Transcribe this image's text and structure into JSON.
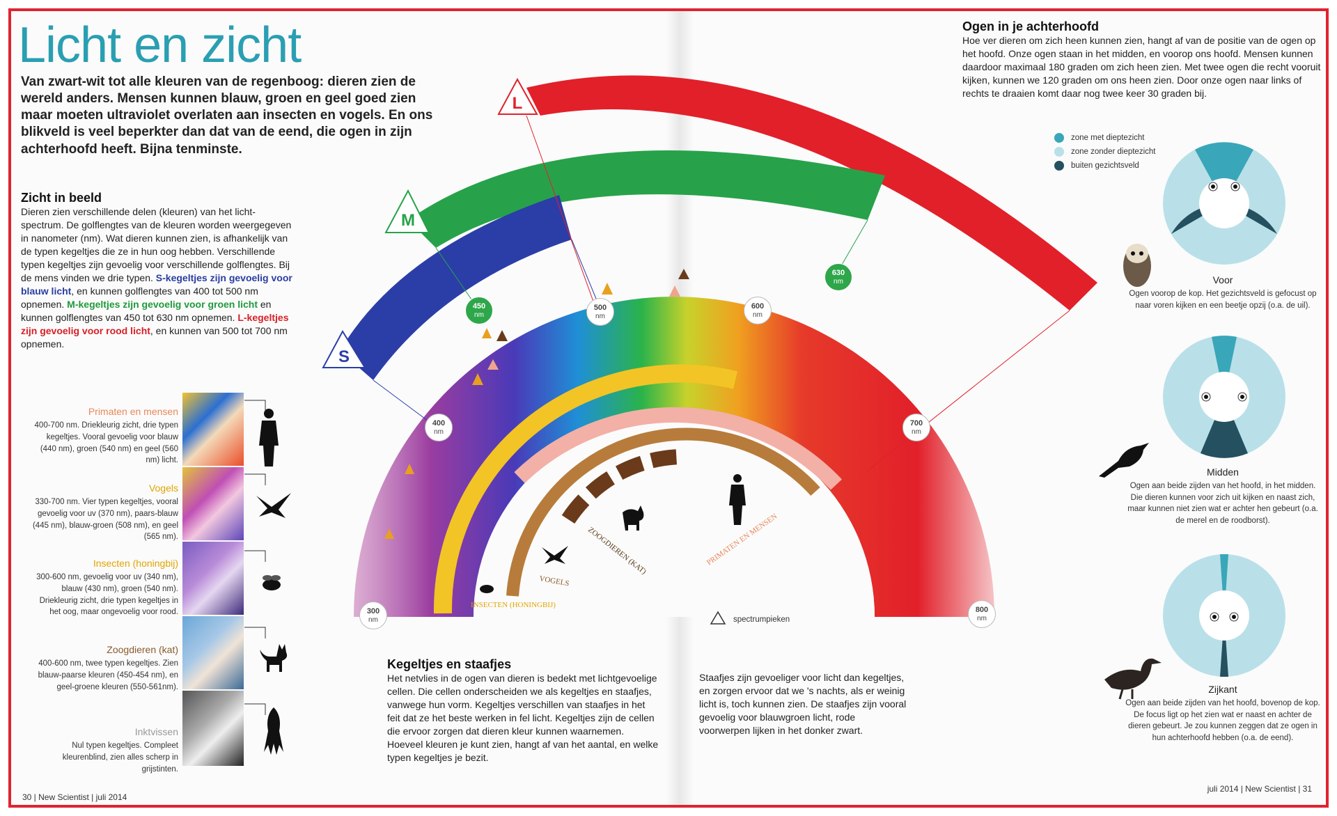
{
  "title": "Licht en zicht",
  "intro": "Van zwart-wit tot alle kleuren van de regenboog: dieren zien de wereld anders. Mensen kunnen blauw, groen en geel goed zien maar moeten ultraviolet overlaten aan insecten en vogels. En ons blikveld is veel beperkter dan dat van de eend, die ogen in zijn achterhoofd heeft. Bijna tenminste.",
  "zicht": {
    "heading": "Zicht in beeld",
    "p1": "Dieren zien verschillende delen (kleuren) van het licht-spectrum. De golflengtes van de kleuren worden weergegeven in nanometer (nm). Wat dieren kunnen zien, is afhankelijk van de typen kegeltjes die ze in hun oog hebben. Verschillende typen kegeltjes zijn gevoelig voor verschillende golflengtes. Bij de mens vinden we drie typen.",
    "s_txt": "S-kegeltjes zijn gevoelig voor blauw licht",
    "p2": ", en kunnen golflengtes van 400 tot 500 nm opnemen.",
    "m_txt": "M-kegeltjes zijn gevoelig voor groen licht",
    "p3": " en kunnen golflengtes van 450 tot 630 nm opnemen.",
    "l_txt": "L-kegeltjes zijn gevoelig voor rood licht",
    "p4": ", en kunnen van 500 tot 700 nm opnemen."
  },
  "animals": [
    {
      "name": "Primaten en mensen",
      "color": "#e8875a",
      "text": "400-700 nm. Driekleurig zicht, drie typen kegeltjes. Vooral gevoelig voor blauw (440 nm), groen (540 nm) en geel (560 nm) licht."
    },
    {
      "name": "Vogels",
      "color": "#e0a400",
      "text": "330-700 nm. Vier typen kegeltjes, vooral gevoelig voor uv (370 nm), paars-blauw (445 nm), blauw-groen (508 nm), en geel (565 nm)."
    },
    {
      "name": "Insecten (honingbij)",
      "color": "#e0a400",
      "text": "300-600 nm, gevoelig voor uv (340 nm), blauw (430 nm), groen (540 nm). Driekleurig zicht, drie typen kegeltjes in het oog, maar ongevoelig voor rood."
    },
    {
      "name": "Zoogdieren (kat)",
      "color": "#8a5a2a",
      "text": "400-600 nm, twee typen kegeltjes. Zien blauw-paarse kleuren (450-454 nm), en geel-groene kleuren (550-561nm)."
    },
    {
      "name": "Inktvissen",
      "color": "#999999",
      "text": "Nul typen kegeltjes. Compleet kleurenblind, zien alles scherp in grijstinten."
    }
  ],
  "cones": {
    "S": "S",
    "M": "M",
    "L": "L"
  },
  "wavelengths": [
    {
      "v": "300",
      "u": "nm"
    },
    {
      "v": "400",
      "u": "nm"
    },
    {
      "v": "450",
      "u": "nm"
    },
    {
      "v": "500",
      "u": "nm"
    },
    {
      "v": "600",
      "u": "nm"
    },
    {
      "v": "630",
      "u": "nm"
    },
    {
      "v": "700",
      "u": "nm"
    },
    {
      "v": "800",
      "u": "nm"
    }
  ],
  "arc_labels": {
    "insecten": "INSECTEN (HONINGBIJ)",
    "vogels": "VOGELS",
    "zoogdieren": "ZOOGDIEREN (KAT)",
    "primaten": "PRIMATEN EN MENSEN"
  },
  "legend_peaks": "spectrumpieken",
  "kegeltjes": {
    "heading": "Kegeltjes en staafjes",
    "text": "Het netvlies in de ogen van dieren is bedekt met lichtgevoelige cellen. Die cellen onderscheiden we als kegeltjes en staafjes, vanwege hun vorm. Kegeltjes verschillen van staafjes in het feit dat ze het beste werken in fel licht. Kegeltjes zijn de cellen die ervoor zorgen dat dieren kleur kunnen waarnemen. Hoeveel kleuren je kunt zien, hangt af van het aantal, en welke typen kegeltjes je bezit."
  },
  "staafjes": {
    "text": "Staafjes zijn gevoeliger voor licht dan kegeltjes, en zorgen ervoor dat we 's nachts, als er weinig licht is, toch kunnen zien. De staafjes zijn vooral gevoelig voor blauwgroen licht, rode voorwerpen lijken in het donker zwart."
  },
  "ogen": {
    "heading": "Ogen in je achterhoofd",
    "text": "Hoe ver dieren om zich heen kunnen zien, hangt af van de positie van de ogen op het hoofd. Onze ogen staan in het midden, en voorop ons hoofd. Mensen kunnen daardoor maximaal 180 graden om zich heen zien. Met twee ogen die recht vooruit kijken, kunnen we 120 graden om ons heen zien. Door onze ogen naar links of rechts te draaien komt daar nog twee keer 30 graden bij."
  },
  "legend": [
    {
      "label": "zone met dieptezicht",
      "color": "#3aa6b9"
    },
    {
      "label": "zone zonder dieptezicht",
      "color": "#b9e0e8"
    },
    {
      "label": "buiten gezichtsveld",
      "color": "#24505f"
    }
  ],
  "eyes": [
    {
      "title": "Voor",
      "caption": "Ogen voorop de kop. Het gezichtsveld is gefocust op naar voren kijken en een beetje opzij (o.a. de uil)."
    },
    {
      "title": "Midden",
      "caption": "Ogen aan beide zijden van het hoofd, in het midden. Die dieren kunnen voor zich uit kijken en naast zich, maar kunnen niet zien wat er achter hen gebeurt (o.a. de merel en de roodborst)."
    },
    {
      "title": "Zijkant",
      "caption": "Ogen aan beide zijden van het hoofd, bovenop de kop. De focus ligt op het zien wat er naast en achter de dieren gebeurt. Je zou kunnen zeggen dat ze ogen in hun achterhoofd hebben (o.a. de eend)."
    }
  ],
  "footer_left": "30 | New Scientist | juli 2014",
  "footer_right": "juli 2014 | New Scientist | 31"
}
